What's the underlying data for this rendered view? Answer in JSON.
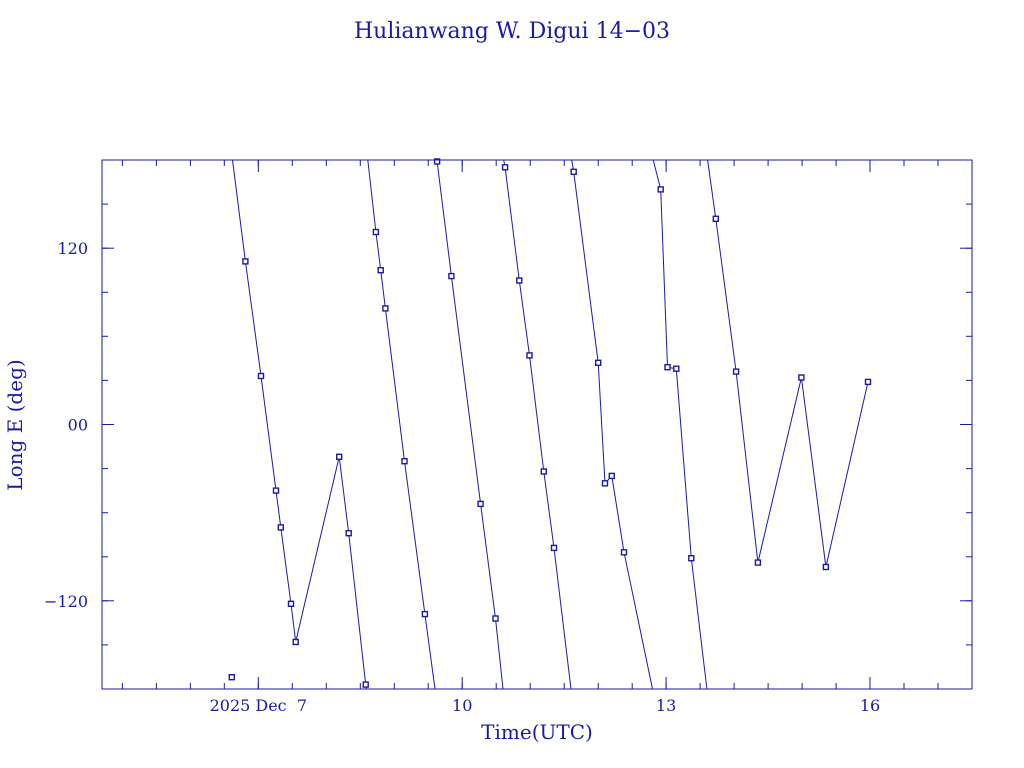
{
  "chart_data": {
    "type": "line",
    "title": "Hulianwang W. Digui 14−03",
    "xlabel": "Time(UTC)",
    "ylabel": "Long E (deg)",
    "xlim": [
      4.7,
      17.5
    ],
    "ylim": [
      -180,
      180
    ],
    "x_units": "days of 2025 December (UTC)",
    "xticks": [
      {
        "value": 7,
        "label": "2025 Dec  7"
      },
      {
        "value": 10,
        "label": "10"
      },
      {
        "value": 13,
        "label": "13"
      },
      {
        "value": 16,
        "label": "16"
      }
    ],
    "x_minor_step": 0.5,
    "yticks": [
      {
        "value": 120,
        "label": "120"
      },
      {
        "value": 0,
        "label": "00"
      },
      {
        "value": -120,
        "label": "−120"
      }
    ],
    "y_minor_step": 30,
    "grid": false,
    "legend": "none",
    "color": "#1a1aa6",
    "segments": [
      [
        [
          6.61,
          -172.0
        ]
      ],
      [
        [
          6.62,
          180
        ],
        [
          6.81,
          111.0
        ],
        [
          7.04,
          33.0
        ],
        [
          7.26,
          -45.0
        ],
        [
          7.33,
          -70.0
        ],
        [
          7.48,
          -122.0
        ],
        [
          7.55,
          -148.0
        ],
        [
          8.19,
          -22.0
        ],
        [
          8.33,
          -74.0
        ],
        [
          8.58,
          -177.0
        ],
        [
          8.59,
          -180
        ]
      ],
      [
        [
          8.61,
          180
        ],
        [
          8.73,
          131.0
        ],
        [
          8.8,
          105.0
        ],
        [
          8.87,
          79.0
        ],
        [
          9.15,
          -25.0
        ],
        [
          9.45,
          -129.0
        ],
        [
          9.6,
          -180
        ]
      ],
      [
        [
          9.61,
          180
        ],
        [
          9.63,
          179.0
        ],
        [
          9.84,
          101.0
        ],
        [
          10.27,
          -54.0
        ],
        [
          10.49,
          -132.0
        ],
        [
          10.6,
          -180
        ]
      ],
      [
        [
          10.61,
          180
        ],
        [
          10.63,
          175.0
        ],
        [
          10.84,
          98.0
        ],
        [
          10.99,
          47.0
        ],
        [
          11.2,
          -32.0
        ],
        [
          11.35,
          -84.0
        ],
        [
          11.6,
          -180
        ]
      ],
      [
        [
          11.61,
          180
        ],
        [
          11.64,
          172.0
        ],
        [
          12.0,
          42.0
        ],
        [
          12.1,
          -40.0
        ],
        [
          12.2,
          -35.0
        ],
        [
          12.38,
          -87.0
        ],
        [
          12.8,
          -180
        ]
      ],
      [
        [
          12.81,
          180
        ],
        [
          12.92,
          160.0
        ],
        [
          13.02,
          39.0
        ],
        [
          13.15,
          38.0
        ],
        [
          13.37,
          -91.0
        ],
        [
          13.6,
          -180
        ]
      ],
      [
        [
          13.61,
          180
        ],
        [
          13.73,
          140.0
        ],
        [
          14.03,
          36.0
        ],
        [
          14.35,
          -94.0
        ],
        [
          14.99,
          32.0
        ],
        [
          15.35,
          -97.0
        ],
        [
          15.97,
          29.0
        ]
      ]
    ],
    "marker_points": [
      [
        6.61,
        -172.0
      ],
      [
        6.81,
        111.0
      ],
      [
        7.04,
        33.0
      ],
      [
        7.26,
        -45.0
      ],
      [
        7.33,
        -70.0
      ],
      [
        7.48,
        -122.0
      ],
      [
        7.55,
        -148.0
      ],
      [
        8.19,
        -22.0
      ],
      [
        8.33,
        -74.0
      ],
      [
        8.58,
        -177.0
      ],
      [
        8.73,
        131.0
      ],
      [
        8.8,
        105.0
      ],
      [
        8.87,
        79.0
      ],
      [
        9.15,
        -25.0
      ],
      [
        9.45,
        -129.0
      ],
      [
        9.63,
        179.0
      ],
      [
        9.84,
        101.0
      ],
      [
        10.27,
        -54.0
      ],
      [
        10.49,
        -132.0
      ],
      [
        10.63,
        175.0
      ],
      [
        10.84,
        98.0
      ],
      [
        10.99,
        47.0
      ],
      [
        11.2,
        -32.0
      ],
      [
        11.35,
        -84.0
      ],
      [
        11.64,
        172.0
      ],
      [
        12.0,
        42.0
      ],
      [
        12.1,
        -40.0
      ],
      [
        12.2,
        -35.0
      ],
      [
        12.38,
        -87.0
      ],
      [
        12.92,
        160.0
      ],
      [
        13.02,
        39.0
      ],
      [
        13.15,
        38.0
      ],
      [
        13.37,
        -91.0
      ],
      [
        13.73,
        140.0
      ],
      [
        14.03,
        36.0
      ],
      [
        14.35,
        -94.0
      ],
      [
        14.99,
        32.0
      ],
      [
        15.35,
        -97.0
      ],
      [
        15.97,
        29.0
      ]
    ]
  }
}
